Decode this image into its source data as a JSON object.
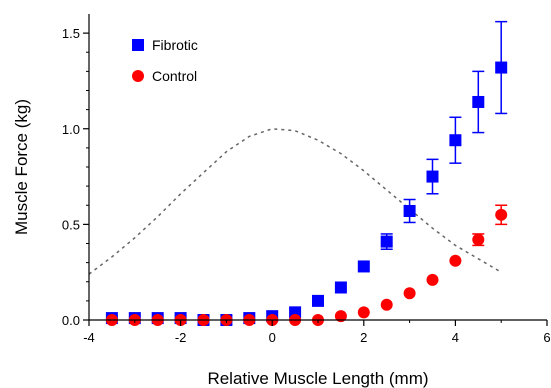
{
  "chart_data": {
    "type": "scatter",
    "xlabel": "Relative Muscle Length (mm)",
    "ylabel": "Muscle Force (kg)",
    "xlim": [
      -4,
      6
    ],
    "ylim": [
      0,
      1.6
    ],
    "x_ticks": [
      -4,
      -2,
      0,
      2,
      4,
      6
    ],
    "x_tick_labels": [
      "-4",
      "-2",
      "0",
      "2",
      "4",
      "6"
    ],
    "y_ticks": [
      0,
      0.5,
      1.0,
      1.5
    ],
    "y_tick_labels": [
      "0.0",
      "0.5",
      "1.0",
      "1.5"
    ],
    "grid": false,
    "legend_position": "top-left",
    "series": [
      {
        "name": "Fibrotic",
        "marker": "square",
        "color": "#0000ff",
        "points": [
          {
            "x": -3.5,
            "y": 0.01,
            "err": 0.0
          },
          {
            "x": -3.0,
            "y": 0.01,
            "err": 0.0
          },
          {
            "x": -2.5,
            "y": 0.01,
            "err": 0.0
          },
          {
            "x": -2.0,
            "y": 0.01,
            "err": 0.0
          },
          {
            "x": -1.5,
            "y": 0.0,
            "err": 0.0
          },
          {
            "x": -1.0,
            "y": 0.0,
            "err": 0.0
          },
          {
            "x": -0.5,
            "y": 0.01,
            "err": 0.0
          },
          {
            "x": 0.0,
            "y": 0.02,
            "err": 0.0
          },
          {
            "x": 0.5,
            "y": 0.04,
            "err": 0.0
          },
          {
            "x": 1.0,
            "y": 0.1,
            "err": 0.0
          },
          {
            "x": 1.5,
            "y": 0.17,
            "err": 0.0
          },
          {
            "x": 2.0,
            "y": 0.28,
            "err": 0.0
          },
          {
            "x": 2.5,
            "y": 0.41,
            "err": 0.04
          },
          {
            "x": 3.0,
            "y": 0.57,
            "err": 0.06
          },
          {
            "x": 3.5,
            "y": 0.75,
            "err": 0.09
          },
          {
            "x": 4.0,
            "y": 0.94,
            "err": 0.12
          },
          {
            "x": 4.5,
            "y": 1.14,
            "err": 0.16
          },
          {
            "x": 5.0,
            "y": 1.32,
            "err": 0.24
          }
        ]
      },
      {
        "name": "Control",
        "marker": "circle",
        "color": "#ff0000",
        "points": [
          {
            "x": -3.5,
            "y": 0.0,
            "err": 0.0
          },
          {
            "x": -3.0,
            "y": 0.0,
            "err": 0.0
          },
          {
            "x": -2.5,
            "y": 0.0,
            "err": 0.0
          },
          {
            "x": -2.0,
            "y": 0.0,
            "err": 0.0
          },
          {
            "x": -1.5,
            "y": 0.0,
            "err": 0.0
          },
          {
            "x": -1.0,
            "y": 0.0,
            "err": 0.0
          },
          {
            "x": -0.5,
            "y": 0.0,
            "err": 0.0
          },
          {
            "x": 0.0,
            "y": 0.0,
            "err": 0.0
          },
          {
            "x": 0.5,
            "y": 0.0,
            "err": 0.0
          },
          {
            "x": 1.0,
            "y": 0.0,
            "err": 0.0
          },
          {
            "x": 1.5,
            "y": 0.02,
            "err": 0.0
          },
          {
            "x": 2.0,
            "y": 0.04,
            "err": 0.0
          },
          {
            "x": 2.5,
            "y": 0.08,
            "err": 0.0
          },
          {
            "x": 3.0,
            "y": 0.14,
            "err": 0.0
          },
          {
            "x": 3.5,
            "y": 0.21,
            "err": 0.0
          },
          {
            "x": 4.0,
            "y": 0.31,
            "err": 0.0
          },
          {
            "x": 4.5,
            "y": 0.42,
            "err": 0.03
          },
          {
            "x": 5.0,
            "y": 0.55,
            "err": 0.05
          }
        ]
      }
    ],
    "reference_curve": {
      "style": "dotted",
      "color": "#666666",
      "x": [
        -4.0,
        -3.5,
        -3.0,
        -2.5,
        -2.0,
        -1.5,
        -1.0,
        -0.5,
        0.0,
        0.5,
        1.0,
        1.5,
        2.0,
        2.5,
        3.0,
        3.5,
        4.0,
        4.5,
        5.0
      ],
      "y": [
        0.24,
        0.33,
        0.43,
        0.54,
        0.66,
        0.77,
        0.88,
        0.96,
        1.0,
        0.99,
        0.94,
        0.87,
        0.78,
        0.68,
        0.58,
        0.48,
        0.39,
        0.32,
        0.25
      ]
    }
  }
}
